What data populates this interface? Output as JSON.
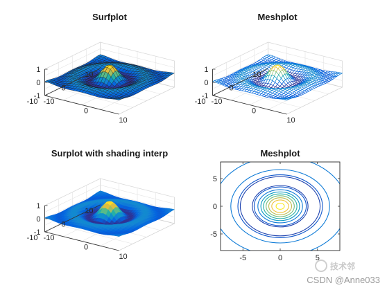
{
  "chart_data": [
    {
      "type": "surface",
      "function": "sin(R)/R, R = sqrt(x^2 + y^2)",
      "title": "Surfplot",
      "x_range": [
        -10,
        10
      ],
      "y_range": [
        -10,
        10
      ],
      "zlim": [
        -1,
        1
      ],
      "z_ticks": [
        "1",
        "0",
        "-1"
      ],
      "y_ticks": [
        "10",
        "0",
        "-10"
      ],
      "x_ticks": [
        "-10",
        "0",
        "10"
      ],
      "shading": "faceted",
      "colormap": "parula",
      "grid": true
    },
    {
      "type": "mesh",
      "function": "sin(R)/R, R = sqrt(x^2 + y^2)",
      "title": "Meshplot",
      "x_range": [
        -10,
        10
      ],
      "y_range": [
        -10,
        10
      ],
      "zlim": [
        -1,
        1
      ],
      "z_ticks": [
        "1",
        "0",
        "-1"
      ],
      "y_ticks": [
        "10",
        "0",
        "-10"
      ],
      "x_ticks": [
        "-10",
        "0",
        "10"
      ],
      "colormap": "parula",
      "grid": true
    },
    {
      "type": "surface",
      "function": "sin(R)/R, R = sqrt(x^2 + y^2)",
      "title": "Surplot with shading interp",
      "x_range": [
        -10,
        10
      ],
      "y_range": [
        -10,
        10
      ],
      "zlim": [
        -1,
        1
      ],
      "z_ticks": [
        "1",
        "0",
        "-1"
      ],
      "y_ticks": [
        "10",
        "0",
        "-10"
      ],
      "x_ticks": [
        "-10",
        "0",
        "10"
      ],
      "shading": "interp",
      "colormap": "parula",
      "grid": true
    },
    {
      "type": "contour",
      "function": "sin(R)/R, R = sqrt(x^2 + y^2)",
      "title": "Meshplot",
      "x_range": [
        -8,
        8
      ],
      "y_range": [
        -8,
        8
      ],
      "x_ticks": [
        "-5",
        "0",
        "5"
      ],
      "y_ticks": [
        "5",
        "0",
        "-5"
      ],
      "contour_levels": [
        -0.15,
        -0.1,
        0.05,
        0.2,
        0.35,
        0.5,
        0.65,
        0.8,
        0.95
      ],
      "colormap": "parula"
    }
  ],
  "watermark": {
    "text": "CSDN @Anne033",
    "logo_text": "技术邻"
  }
}
